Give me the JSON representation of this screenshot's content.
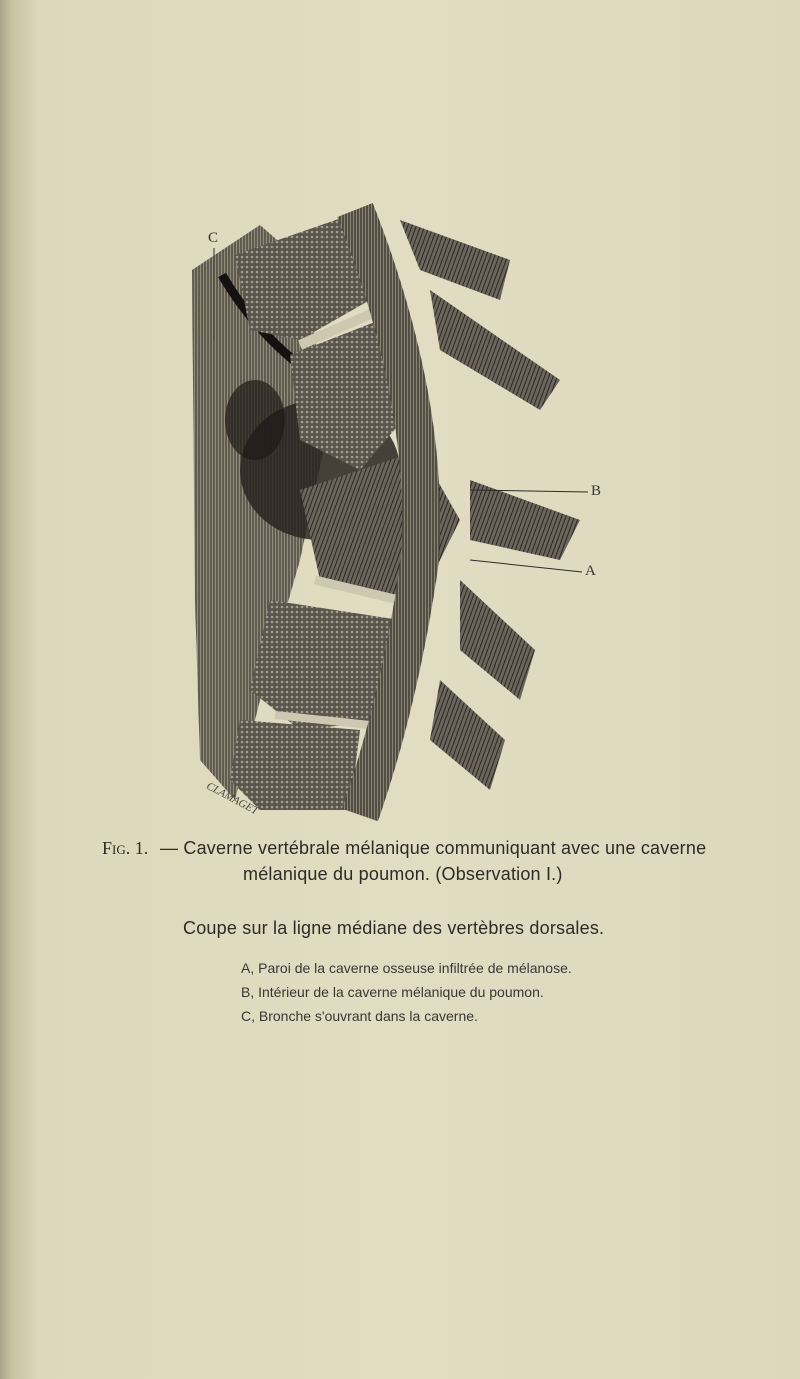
{
  "figure": {
    "labels": {
      "c": "C",
      "b": "B",
      "a": "A"
    },
    "signature": "CLAMAGET"
  },
  "caption": {
    "figure_label": "Fig. 1.",
    "lines": [
      "— Caverne vertébrale mélanique communiquant avec une caverne",
      "mélanique du poumon. (Observation I.)"
    ],
    "subtitle": "Coupe sur la ligne médiane des vertèbres dorsales.",
    "legend": [
      "A, Paroi de la caverne osseuse infiltrée de mélanose.",
      "B, Intérieur de la caverne mélanique du poumon.",
      "C, Bronche s'ouvrant dans la caverne."
    ]
  }
}
